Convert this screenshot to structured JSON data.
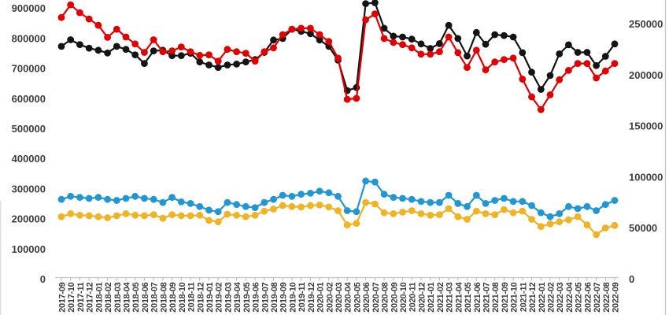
{
  "chart_data": {
    "type": "line",
    "title": "",
    "grid": false,
    "legend": "none",
    "x": [
      "2017-09",
      "2017-10",
      "2017-11",
      "2017-12",
      "2018-01",
      "2018-02",
      "2018-03",
      "2018-04",
      "2018-05",
      "2018-06",
      "2018-07",
      "2018-08",
      "2018-09",
      "2018-10",
      "2018-11",
      "2018-12",
      "2019-01",
      "2019-02",
      "2019-03",
      "2019-04",
      "2019-05",
      "2019-06",
      "2019-07",
      "2019-08",
      "2019-09",
      "2019-10",
      "2019-11",
      "2019-12",
      "2020-01",
      "2020-02",
      "2020-03",
      "2020-04",
      "2020-05",
      "2020-06",
      "2020-07",
      "2020-08",
      "2020-09",
      "2020-10",
      "2020-11",
      "2020-12",
      "2021-01",
      "2021-02",
      "2021-03",
      "2021-04",
      "2021-05",
      "2021-06",
      "2021-07",
      "2021-08",
      "2021-09",
      "2021-10",
      "2021-11",
      "2021-12",
      "2022-01",
      "2022-02",
      "2022-03",
      "2022-04",
      "2022-05",
      "2022-06",
      "2022-07",
      "2022-08",
      "2022-09"
    ],
    "left_axis": {
      "ticks": [
        0,
        100000,
        200000,
        300000,
        400000,
        500000,
        600000,
        700000,
        800000,
        900000
      ],
      "range": [
        0,
        920000
      ]
    },
    "right_axis": {
      "ticks": [
        0,
        50000,
        100000,
        150000,
        200000,
        250000
      ],
      "range": [
        0,
        272000
      ]
    },
    "series": [
      {
        "id": "black",
        "color": "#141414",
        "axis": "left",
        "values": [
          770000,
          792000,
          776000,
          764000,
          757000,
          748000,
          770000,
          760000,
          742000,
          713000,
          755000,
          757000,
          739000,
          739000,
          747000,
          718000,
          708000,
          700000,
          708000,
          711000,
          718000,
          726000,
          750000,
          791000,
          796000,
          827000,
          820000,
          812000,
          791000,
          770000,
          724000,
          623000,
          633000,
          912000,
          915000,
          830000,
          804000,
          801000,
          794000,
          778000,
          763000,
          779000,
          840000,
          796000,
          738000,
          816000,
          777000,
          809000,
          806000,
          801000,
          749000,
          684000,
          627000,
          673000,
          745000,
          775000,
          750000,
          750000,
          706000,
          737000,
          778000
        ]
      },
      {
        "id": "red",
        "color": "#e10000",
        "axis": "left",
        "values": [
          866000,
          908000,
          882000,
          861000,
          840000,
          800000,
          827000,
          801000,
          778000,
          750000,
          792000,
          752000,
          755000,
          768000,
          752000,
          740000,
          742000,
          721000,
          760000,
          752000,
          747000,
          721000,
          752000,
          765000,
          809000,
          827000,
          830000,
          830000,
          809000,
          786000,
          731000,
          594000,
          597000,
          858000,
          878000,
          796000,
          783000,
          776000,
          765000,
          744000,
          744000,
          752000,
          801000,
          749000,
          700000,
          757000,
          692000,
          718000,
          726000,
          731000,
          661000,
          602000,
          560000,
          609000,
          659000,
          690000,
          713000,
          713000,
          665000,
          688000,
          713000
        ]
      },
      {
        "id": "blue",
        "color": "#2097d3",
        "axis": "right",
        "values": [
          77000,
          80000,
          79000,
          78000,
          79000,
          77000,
          76000,
          78000,
          80000,
          78000,
          77000,
          74000,
          79000,
          74500,
          73000,
          70000,
          66500,
          65000,
          74000,
          72000,
          70000,
          69000,
          74000,
          77000,
          81000,
          80000,
          82000,
          83000,
          85000,
          83500,
          80000,
          66000,
          65000,
          95000,
          94000,
          82000,
          79000,
          78000,
          77000,
          75000,
          74000,
          74000,
          81000,
          73000,
          70000,
          81000,
          73000,
          76000,
          78000,
          75000,
          75000,
          71000,
          64000,
          60000,
          63000,
          70000,
          68000,
          70000,
          66000,
          72000,
          76000
        ]
      },
      {
        "id": "yellow",
        "color": "#f0b323",
        "axis": "right",
        "values": [
          60000,
          63000,
          61500,
          61000,
          60000,
          59000,
          61000,
          63000,
          61500,
          61000,
          62000,
          58500,
          62000,
          61000,
          61000,
          61500,
          56500,
          55000,
          62500,
          61500,
          60000,
          61500,
          65500,
          67500,
          71000,
          70000,
          69500,
          71000,
          71500,
          69500,
          66000,
          52000,
          53500,
          74000,
          72500,
          64000,
          63000,
          64500,
          66000,
          63000,
          61500,
          62000,
          68000,
          60000,
          57500,
          65500,
          63000,
          62000,
          67000,
          64000,
          65500,
          57500,
          50500,
          53000,
          55000,
          57000,
          60000,
          52000,
          42500,
          49000,
          51500
        ]
      }
    ],
    "style": {
      "axis_line_color": "#c9c9c9",
      "tick_mark_color": "#b5b5b5",
      "label_color": "#3d3d3d",
      "background": "#ffffff"
    }
  }
}
